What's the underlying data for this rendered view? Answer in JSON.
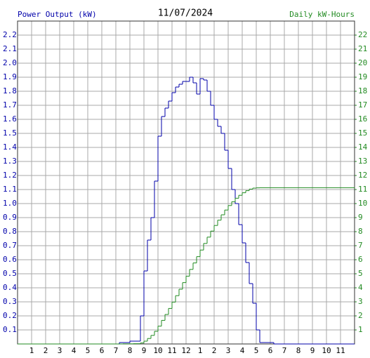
{
  "chart_data": {
    "type": "step",
    "title": "11/07/2024",
    "y_label": "Power Output (kW)",
    "y2_label": "Daily kW-Hours",
    "x": [
      0,
      7,
      7.25,
      7.5,
      7.75,
      8,
      8.25,
      8.5,
      8.75,
      9,
      9.25,
      9.5,
      9.75,
      10,
      10.25,
      10.5,
      10.75,
      11,
      11.25,
      11.5,
      11.75,
      12,
      12.25,
      12.5,
      12.75,
      13,
      13.25,
      13.5,
      13.75,
      14,
      14.25,
      14.5,
      14.75,
      15,
      15.25,
      15.5,
      15.75,
      16,
      16.25,
      16.5,
      16.75,
      17,
      17.25,
      17.5,
      17.75,
      18,
      18.25,
      18.5,
      24
    ],
    "series": [
      {
        "name": "Power Output (kW)",
        "color": "#0000aa",
        "axis": "y",
        "values": [
          0,
          0,
          0.01,
          0.01,
          0.01,
          0.02,
          0.02,
          0.02,
          0.2,
          0.52,
          0.74,
          0.9,
          1.16,
          1.48,
          1.62,
          1.68,
          1.73,
          1.79,
          1.83,
          1.85,
          1.87,
          1.87,
          1.9,
          1.86,
          1.78,
          1.89,
          1.88,
          1.8,
          1.7,
          1.6,
          1.55,
          1.5,
          1.38,
          1.25,
          1.1,
          1.0,
          0.85,
          0.72,
          0.58,
          0.43,
          0.29,
          0.1,
          0.01,
          0.01,
          0.01,
          0.01,
          0,
          0,
          null
        ]
      },
      {
        "name": "Daily kW-Hours",
        "color": "#228b22",
        "axis": "y2",
        "values": [
          0,
          0,
          0,
          0.01,
          0.01,
          0.01,
          0.02,
          0.02,
          0.07,
          0.2,
          0.39,
          0.61,
          0.9,
          1.27,
          1.68,
          2.1,
          2.53,
          2.98,
          3.44,
          3.9,
          4.37,
          4.83,
          5.31,
          5.77,
          6.22,
          6.69,
          7.16,
          7.61,
          8.04,
          8.44,
          8.82,
          9.2,
          9.54,
          9.86,
          10.13,
          10.38,
          10.59,
          10.77,
          10.92,
          11.03,
          11.1,
          11.12,
          11.13,
          11.13,
          11.13,
          11.13,
          11.13,
          11.13,
          11.13
        ]
      }
    ],
    "xlim": [
      0,
      24
    ],
    "xticks": [
      1,
      2,
      3,
      4,
      5,
      6,
      7,
      8,
      9,
      10,
      11,
      12,
      {
        "value": 13,
        "label": "1"
      },
      {
        "value": 14,
        "label": "2"
      },
      {
        "value": 15,
        "label": "3"
      },
      {
        "value": 16,
        "label": "4"
      },
      {
        "value": 17,
        "label": "5"
      },
      {
        "value": 18,
        "label": "6"
      },
      {
        "value": 19,
        "label": "7"
      },
      {
        "value": 20,
        "label": "8"
      },
      {
        "value": 21,
        "label": "9"
      },
      {
        "value": 22,
        "label": "10"
      },
      {
        "value": 23,
        "label": "11"
      }
    ],
    "ylim": [
      0,
      2.3
    ],
    "yticks": [
      0.1,
      0.2,
      0.3,
      0.4,
      0.5,
      0.6,
      0.7,
      0.8,
      0.9,
      {
        "value": 1,
        "label": "1.0"
      },
      1.1,
      1.2,
      1.3,
      1.4,
      1.5,
      1.6,
      1.7,
      1.8,
      1.9,
      {
        "value": 2,
        "label": "2.0"
      },
      2.1,
      2.2
    ],
    "y2lim": [
      0,
      23
    ],
    "y2ticks": [
      1,
      2,
      3,
      4,
      5,
      6,
      7,
      8,
      9,
      10,
      11,
      12,
      13,
      14,
      15,
      16,
      17,
      18,
      19,
      20,
      21,
      22
    ],
    "grid": true
  }
}
